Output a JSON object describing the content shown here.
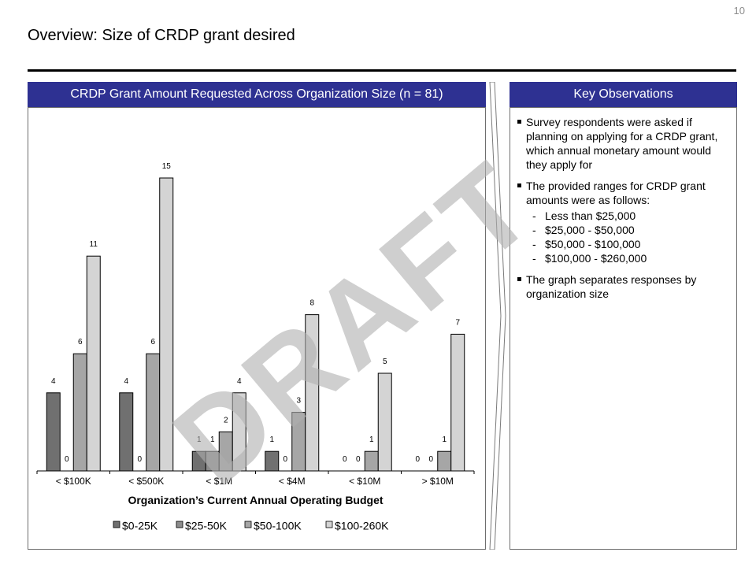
{
  "page_number": "10",
  "page_title": "Overview: Size of CRDP grant desired",
  "left_panel": {
    "header": "CRDP Grant Amount Requested Across Organization Size (n = 81)"
  },
  "right_panel": {
    "header": "Key Observations",
    "bullets": [
      {
        "text": "Survey respondents were asked if planning on applying for a CRDP grant, which annual monetary amount would they apply for"
      },
      {
        "text": "The provided ranges for CRDP grant amounts were as follows:",
        "sub": [
          "Less than $25,000",
          "$25,000 - $50,000",
          "$50,000 - $100,000",
          "$100,000 - $260,000"
        ]
      },
      {
        "text": "The graph separates responses by organization size"
      }
    ]
  },
  "watermark": "DRAFT",
  "chart_data": {
    "type": "bar",
    "title": "",
    "xlabel": "Organization’s Current Annual Operating Budget",
    "ylabel": "",
    "ylim": [
      0,
      15
    ],
    "grid": false,
    "legend_position": "bottom",
    "categories": [
      "< $100K",
      "< $500K",
      "< $1M",
      "< $4M",
      "< $10M",
      "> $10M"
    ],
    "series": [
      {
        "name": "$0-25K",
        "color": "#707070",
        "values": [
          4,
          4,
          1,
          1,
          0,
          0
        ]
      },
      {
        "name": "$25-50K",
        "color": "#8c8c8c",
        "values": [
          0,
          0,
          1,
          0,
          0,
          0
        ]
      },
      {
        "name": "$50-100K",
        "color": "#a6a6a6",
        "values": [
          6,
          6,
          2,
          3,
          1,
          1
        ]
      },
      {
        "name": "$100-260K",
        "color": "#d4d4d4",
        "values": [
          11,
          15,
          4,
          8,
          5,
          7
        ]
      }
    ]
  }
}
